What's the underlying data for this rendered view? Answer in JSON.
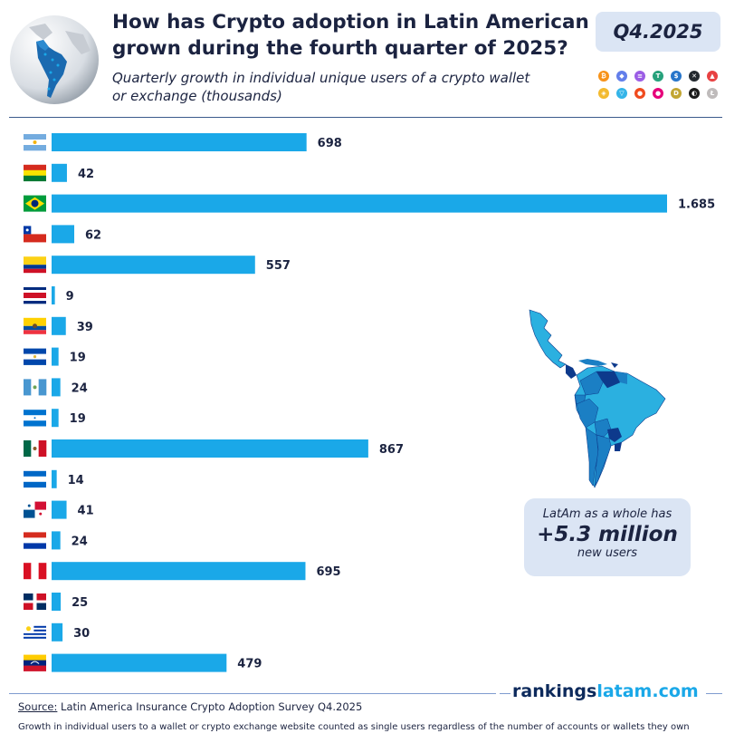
{
  "header": {
    "title": "How has Crypto adoption in Latin American grown during the fourth quarter of 2025?",
    "subtitle": "Quarterly growth in individual unique users of a crypto wallet or exchange (thousands)",
    "badge": "Q4.2025"
  },
  "icons": {
    "globe": "globe-latin-america-icon",
    "coins": [
      "bitcoin-icon",
      "ethereum-icon",
      "solana-icon",
      "tether-icon",
      "usdc-icon",
      "xrp-icon",
      "avalanche-icon",
      "bnb-icon",
      "toncoin-icon",
      "shiba-inu-icon",
      "polkadot-icon",
      "dogecoin-icon",
      "chainlink-icon",
      "litecoin-icon"
    ]
  },
  "chart_data": {
    "type": "bar",
    "orientation": "horizontal",
    "categories": [
      "Argentina",
      "Bolivia",
      "Brazil",
      "Chile",
      "Colombia",
      "Costa Rica",
      "Ecuador",
      "El Salvador",
      "Guatemala",
      "Honduras",
      "Mexico",
      "Nicaragua",
      "Panama",
      "Paraguay",
      "Peru",
      "Dominican Republic",
      "Uruguay",
      "Venezuela"
    ],
    "values": [
      698,
      42,
      1685,
      62,
      557,
      9,
      39,
      19,
      24,
      19,
      867,
      14,
      41,
      24,
      695,
      25,
      30,
      479
    ],
    "value_labels": [
      "698",
      "42",
      "1.685",
      "62",
      "557",
      "9",
      "39",
      "19",
      "24",
      "19",
      "867",
      "14",
      "41",
      "24",
      "695",
      "25",
      "30",
      "479"
    ],
    "category_display": "flags",
    "bar_color": "#1aa8e8",
    "unit": "thousands"
  },
  "callout": {
    "line1": "LatAm as a whole has",
    "line2": "+5.3 million",
    "line3": "new users"
  },
  "footer": {
    "brand_a": "rankings",
    "brand_b": "latam.com",
    "source_label": "Source:",
    "source_text": " Latin America Insurance Crypto Adoption Survey Q4.2025",
    "note": "Growth in individual users to a wallet or crypto exchange website counted as single users regardless of the number of accounts or wallets they own"
  },
  "colors": {
    "bar": "#1aa8e8",
    "title": "#1b2340",
    "panel": "#dbe5f4",
    "map_dark": "#0d3a8c",
    "map_mid": "#1b7fc4",
    "map_light": "#2bb0e0"
  }
}
